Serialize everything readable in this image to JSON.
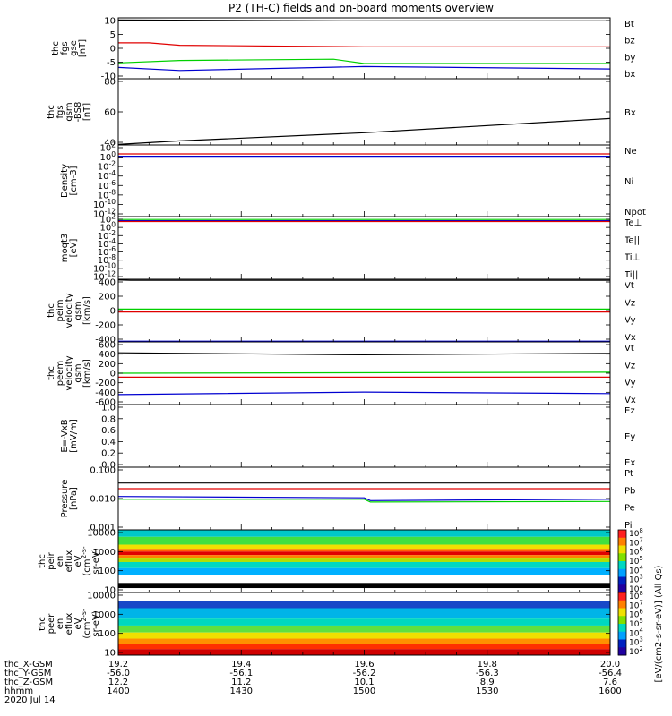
{
  "title": "P2 (TH-C) fields and on-board moments overview",
  "colors": {
    "black": "#000000",
    "red": "#e00000",
    "green": "#00d000",
    "blue": "#0000d0"
  },
  "chart_data": [
    {
      "type": "line",
      "ylabel": [
        "thc",
        "fgs",
        "gse",
        "[nT]"
      ],
      "yticks": [
        "10",
        "5",
        "0",
        "-5",
        "-10"
      ],
      "ylim": [
        -10,
        10
      ],
      "legend": [
        {
          "label": "Bt",
          "color": "black"
        },
        {
          "label": "bz",
          "color": "red"
        },
        {
          "label": "by",
          "color": "green"
        },
        {
          "label": "bx",
          "color": "blue"
        }
      ],
      "series": [
        {
          "color": "black",
          "x": [
            19.2,
            19.6,
            20.0
          ],
          "y": [
            9.3,
            9.0,
            9.0
          ]
        },
        {
          "color": "red",
          "x": [
            19.2,
            19.25,
            19.3,
            19.6,
            20.0
          ],
          "y": [
            1.8,
            1.8,
            1.0,
            0.5,
            0.5
          ]
        },
        {
          "color": "green",
          "x": [
            19.2,
            19.3,
            19.55,
            19.6,
            20.0
          ],
          "y": [
            -4.8,
            -4.0,
            -3.6,
            -5.0,
            -5.0
          ]
        },
        {
          "color": "blue",
          "x": [
            19.2,
            19.3,
            19.55,
            19.6,
            20.0
          ],
          "y": [
            -6.3,
            -7.3,
            -6.2,
            -6.0,
            -6.8
          ]
        }
      ]
    },
    {
      "type": "line",
      "ylabel": [
        "thc",
        "fgs",
        "gsm",
        "-BS8",
        "[nT]"
      ],
      "yticks": [
        "80",
        "60",
        "40"
      ],
      "ylim": [
        30,
        95
      ],
      "legend": [
        {
          "label": "Bx",
          "color": "black"
        }
      ],
      "series": [
        {
          "color": "black",
          "x": [
            19.2,
            19.3,
            19.6,
            20.0
          ],
          "y": [
            30.5,
            34.0,
            42.0,
            56.0
          ]
        }
      ]
    },
    {
      "type": "line",
      "log": true,
      "ylabel": [
        "Density",
        "[cm-3]"
      ],
      "yticks": [
        "10^2",
        "10^0",
        "10^-2",
        "10^-4",
        "10^-6",
        "10^-8",
        "10^-10",
        "10^-12"
      ],
      "ylim": [
        -13,
        2.2
      ],
      "legend": [
        {
          "label": "Ne",
          "color": "red"
        },
        {
          "label": "Ni",
          "color": "black"
        },
        {
          "label": "Npot",
          "color": "blue"
        }
      ],
      "series": [
        {
          "color": "blue",
          "x": [
            19.2,
            20.0
          ],
          "y": [
            -0.2,
            -0.2
          ]
        },
        {
          "color": "red",
          "x": [
            19.2,
            20.0
          ],
          "y": [
            0.3,
            0.3
          ]
        }
      ]
    },
    {
      "type": "line",
      "log": true,
      "ylabel": [
        "moqt3",
        "[eV]"
      ],
      "yticks": [
        "10^2",
        "10^0",
        "10^-2",
        "10^-4",
        "10^-6",
        "10^-8",
        "10^-10",
        "10^-12"
      ],
      "ylim": [
        -13,
        2.2
      ],
      "legend": [
        {
          "label": "Te⊥",
          "color": "red"
        },
        {
          "label": "Te||",
          "color": "black"
        },
        {
          "label": "Ti⊥",
          "color": "blue"
        },
        {
          "label": "Ti||",
          "color": "green"
        }
      ],
      "series": [
        {
          "color": "green",
          "x": [
            19.2,
            20.0
          ],
          "y": [
            1.5,
            1.5
          ]
        },
        {
          "color": "blue",
          "x": [
            19.2,
            20.0
          ],
          "y": [
            1.2,
            1.2
          ]
        },
        {
          "color": "red",
          "x": [
            19.2,
            20.0
          ],
          "y": [
            1.0,
            1.0
          ]
        }
      ]
    },
    {
      "type": "line",
      "ylabel": [
        "thc",
        "peim",
        "velocity",
        "gsm",
        "[km/s]"
      ],
      "yticks": [
        "400",
        "200",
        "0",
        "-200",
        "-400"
      ],
      "ylim": [
        -430,
        430
      ],
      "legend": [
        {
          "label": "Vt",
          "color": "black"
        },
        {
          "label": "Vz",
          "color": "red"
        },
        {
          "label": "Vy",
          "color": "green"
        },
        {
          "label": "Vx",
          "color": "blue"
        }
      ],
      "series": [
        {
          "color": "black",
          "x": [
            19.2,
            19.22,
            20.0
          ],
          "y": [
            420,
            415,
            415
          ]
        },
        {
          "color": "green",
          "x": [
            19.2,
            20.0
          ],
          "y": [
            20,
            20
          ]
        },
        {
          "color": "red",
          "x": [
            19.2,
            20.0
          ],
          "y": [
            -20,
            -20
          ]
        },
        {
          "color": "blue",
          "x": [
            19.2,
            20.0
          ],
          "y": [
            -420,
            -420
          ]
        }
      ]
    },
    {
      "type": "line",
      "ylabel": [
        "thc",
        "peem",
        "velocity",
        "gsm",
        "[km/s]"
      ],
      "yticks": [
        "600",
        "400",
        "200",
        "0",
        "-200",
        "-400",
        "-600"
      ],
      "ylim": [
        -630,
        630
      ],
      "legend": [
        {
          "label": "Vt",
          "color": "black"
        },
        {
          "label": "Vz",
          "color": "red"
        },
        {
          "label": "Vy",
          "color": "green"
        },
        {
          "label": "Vx",
          "color": "blue"
        }
      ],
      "series": [
        {
          "color": "black",
          "x": [
            19.2,
            19.5,
            19.6,
            20.0
          ],
          "y": [
            410,
            380,
            370,
            400
          ]
        },
        {
          "color": "green",
          "x": [
            19.2,
            20.0
          ],
          "y": [
            0,
            20
          ]
        },
        {
          "color": "red",
          "x": [
            19.2,
            20.0
          ],
          "y": [
            -80,
            -80
          ]
        },
        {
          "color": "blue",
          "x": [
            19.2,
            19.6,
            20.0
          ],
          "y": [
            -430,
            -380,
            -410
          ]
        }
      ]
    },
    {
      "type": "line",
      "ylabel": [
        "E=-VxB",
        "[mV/m]"
      ],
      "yticks": [
        "1.0",
        "0.8",
        "0.6",
        "0.4",
        "0.2",
        "0.0"
      ],
      "ylim": [
        -0.02,
        1.0
      ],
      "legend": [
        {
          "label": "Ez",
          "color": "red"
        },
        {
          "label": "Ey",
          "color": "green"
        },
        {
          "label": "Ex",
          "color": "blue"
        }
      ],
      "series": []
    },
    {
      "type": "line",
      "log": true,
      "ylabel": [
        "Pressure",
        "[nPa]"
      ],
      "yticks": [
        "0.100",
        "0.010",
        "0.001"
      ],
      "ylim": [
        -3.1,
        -0.85
      ],
      "legend": [
        {
          "label": "Pt",
          "color": "black"
        },
        {
          "label": "Pb",
          "color": "red"
        },
        {
          "label": "Pe",
          "color": "green"
        },
        {
          "label": "Pi",
          "color": "blue"
        }
      ],
      "series": [
        {
          "color": "black",
          "x": [
            19.2,
            20.0
          ],
          "y": [
            -1.42,
            -1.42
          ]
        },
        {
          "color": "red",
          "x": [
            19.2,
            20.0
          ],
          "y": [
            -1.62,
            -1.62
          ]
        },
        {
          "color": "blue",
          "x": [
            19.2,
            19.6,
            19.61,
            20.0
          ],
          "y": [
            -1.9,
            -1.95,
            -2.05,
            -2.0
          ]
        },
        {
          "color": "green",
          "x": [
            19.2,
            19.6,
            19.61,
            20.0
          ],
          "y": [
            -2.0,
            -2.0,
            -2.1,
            -2.08
          ]
        }
      ]
    },
    {
      "type": "heatmap",
      "ylabel": [
        "thc",
        "peir",
        "en",
        "eflux",
        "eV",
        "(cm^2-s-",
        "sr-eV)"
      ],
      "yticks": [
        "10000",
        "1000",
        "100",
        "10"
      ],
      "log": true,
      "ylim": [
        0.6,
        4.2
      ],
      "colorbar": {
        "ticks": [
          "10^8",
          "10^7",
          "10^6",
          "10^5",
          "10^4",
          "10^3",
          "10^2"
        ],
        "label": "[eV/(cm2-s-sr-eV)] (All Qs)"
      },
      "bands": [
        {
          "from": 3.8,
          "to": 4.2,
          "color": "#00c8c8"
        },
        {
          "from": 3.35,
          "to": 3.8,
          "color": "#40e040"
        },
        {
          "from": 3.1,
          "to": 3.35,
          "color": "#f0e000"
        },
        {
          "from": 2.95,
          "to": 3.1,
          "color": "#ff6000"
        },
        {
          "from": 2.75,
          "to": 2.95,
          "color": "#e00000"
        },
        {
          "from": 2.55,
          "to": 2.75,
          "color": "#ff8000"
        },
        {
          "from": 2.35,
          "to": 2.55,
          "color": "#b0e000"
        },
        {
          "from": 2.0,
          "to": 2.35,
          "color": "#00d8c0"
        },
        {
          "from": 1.6,
          "to": 2.0,
          "color": "#00b0ff"
        },
        {
          "from": 1.15,
          "to": 1.6,
          "color": "#ffffff"
        },
        {
          "from": 0.85,
          "to": 1.15,
          "color": "#000000"
        },
        {
          "from": 0.6,
          "to": 0.85,
          "color": "#ffffff"
        }
      ]
    },
    {
      "type": "heatmap",
      "ylabel": [
        "thc",
        "peer",
        "en",
        "eflux",
        "eV",
        "(cm^2-s-",
        "sr-eV)"
      ],
      "yticks": [
        "10000",
        "1000",
        "100",
        "10"
      ],
      "log": true,
      "ylim": [
        0.6,
        4.2
      ],
      "colorbar": {
        "ticks": [
          "10^8",
          "10^7",
          "10^6",
          "10^5",
          "10^4",
          "10^3",
          "10^2"
        ],
        "label": "[eV/(cm2-s-sr-eV)] (All Qs)"
      },
      "bands": [
        {
          "from": 3.7,
          "to": 4.2,
          "color": "#ffffff"
        },
        {
          "from": 3.3,
          "to": 3.7,
          "color": "#1848c8"
        },
        {
          "from": 2.7,
          "to": 3.3,
          "color": "#00b4e8"
        },
        {
          "from": 2.3,
          "to": 2.7,
          "color": "#00d8c0"
        },
        {
          "from": 1.9,
          "to": 2.3,
          "color": "#60e040"
        },
        {
          "from": 1.55,
          "to": 1.9,
          "color": "#f0e000"
        },
        {
          "from": 1.25,
          "to": 1.55,
          "color": "#ff9000"
        },
        {
          "from": 0.95,
          "to": 1.25,
          "color": "#ff3000"
        },
        {
          "from": 0.6,
          "to": 0.95,
          "color": "#d00000"
        }
      ]
    }
  ],
  "xaxis": {
    "ticks": [
      {
        "x": 19.2,
        "rows": [
          "19.2",
          "-56.0",
          "12.2",
          "1400"
        ]
      },
      {
        "x": 19.4,
        "rows": [
          "19.4",
          "-56.1",
          "11.2",
          "1430"
        ]
      },
      {
        "x": 19.6,
        "rows": [
          "19.6",
          "-56.2",
          "10.1",
          "1500"
        ]
      },
      {
        "x": 19.8,
        "rows": [
          "19.8",
          "-56.3",
          "8.9",
          "1530"
        ]
      },
      {
        "x": 20.0,
        "rows": [
          "20.0",
          "-56.4",
          "7.6",
          "1600"
        ]
      }
    ],
    "row_labels": [
      "thc_X-GSM",
      "thc_Y-GSM",
      "thc_Z-GSM",
      "hhmm"
    ],
    "date": "2020 Jul 14"
  }
}
